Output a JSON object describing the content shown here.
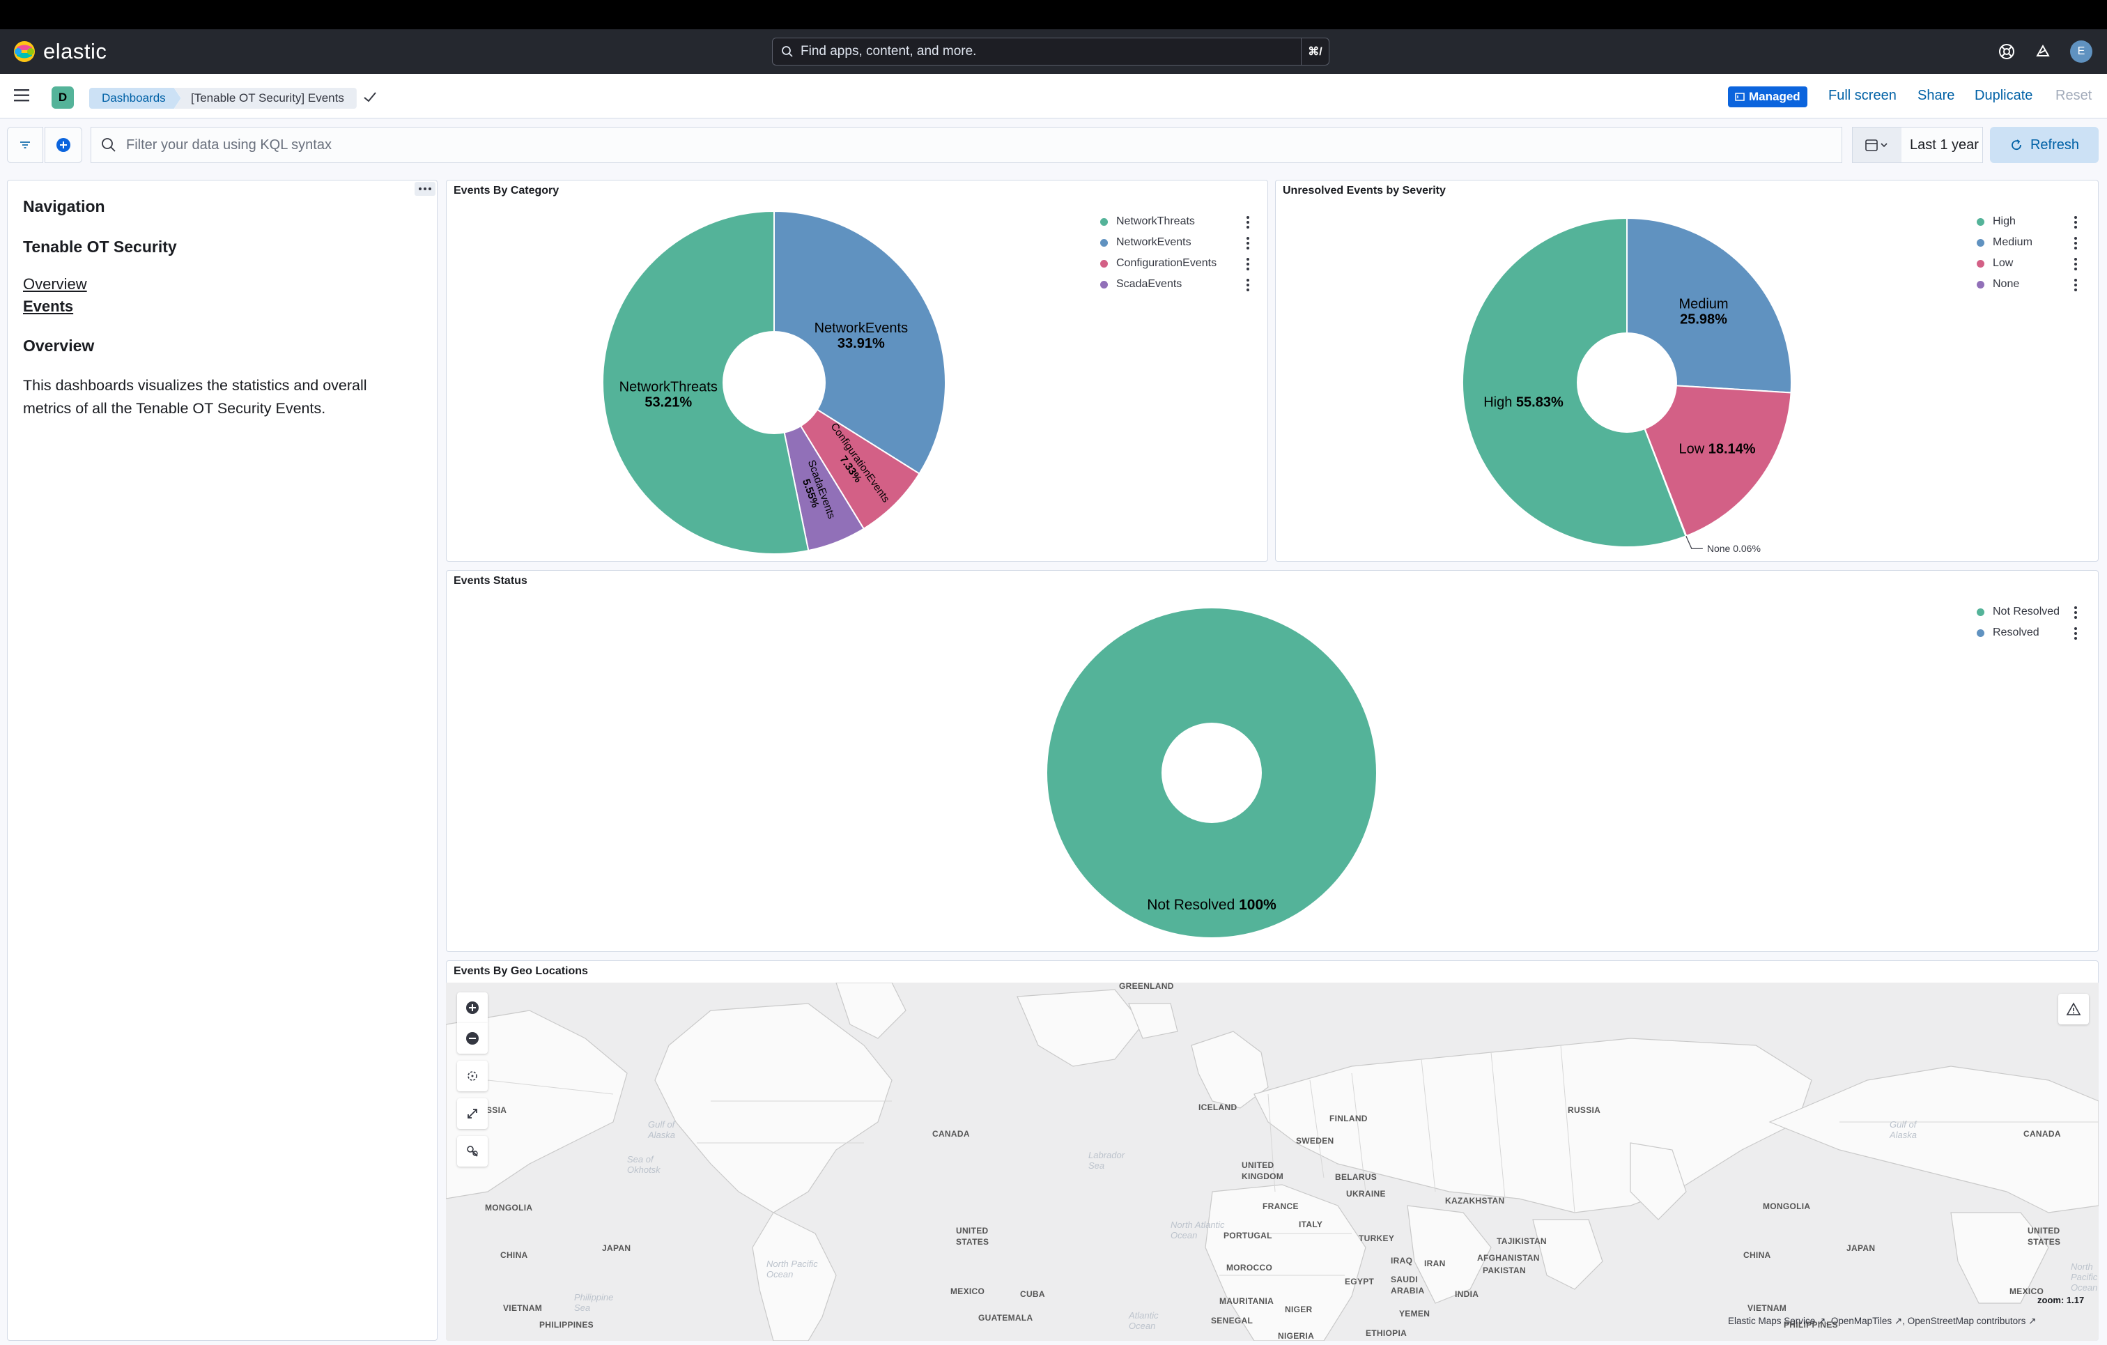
{
  "app": {
    "brand": "elastic",
    "accent": "#0b64dd"
  },
  "global_search": {
    "placeholder": "Find apps, content, and more.",
    "shortcut": "⌘/"
  },
  "header_icons": [
    "help-icon",
    "newsfeed-icon"
  ],
  "user": {
    "initial": "E"
  },
  "space": {
    "initial": "D"
  },
  "breadcrumbs": [
    "Dashboards",
    "[Tenable OT Security] Events"
  ],
  "toolbar": {
    "managed_label": "Managed",
    "fullscreen_label": "Full screen",
    "share_label": "Share",
    "duplicate_label": "Duplicate",
    "reset_label": "Reset"
  },
  "query_bar": {
    "placeholder": "Filter your data using KQL syntax",
    "time_range": "Last 1 year",
    "refresh_label": "Refresh"
  },
  "nav_panel": {
    "heading": "Navigation",
    "subheading": "Tenable OT Security",
    "links": [
      "Overview",
      "Events"
    ],
    "section_title": "Overview",
    "description": "This dashboards visualizes the statistics and overall metrics of all the Tenable OT Security Events."
  },
  "panels": {
    "category_title": "Events By Category",
    "severity_title": "Unresolved Events by Severity",
    "status_title": "Events Status",
    "geo_title": "Events By Geo Locations"
  },
  "chart_data": [
    {
      "type": "pie",
      "title": "Events By Category",
      "slices": [
        {
          "label": "NetworkEvents",
          "value": 33.91,
          "color": "#6092c0"
        },
        {
          "label": "ConfigurationEvents",
          "value": 7.33,
          "color": "#d36086"
        },
        {
          "label": "ScadaEvents",
          "value": 5.55,
          "color": "#9170b8"
        },
        {
          "label": "NetworkThreats",
          "value": 53.21,
          "color": "#54b399"
        }
      ],
      "value_labels": [
        "33.91%",
        "7.33%",
        "5.55%",
        "53.21%"
      ],
      "legend": [
        "NetworkThreats",
        "NetworkEvents",
        "ConfigurationEvents",
        "ScadaEvents"
      ],
      "legend_position": "top-right",
      "donut": true
    },
    {
      "type": "pie",
      "title": "Unresolved Events by Severity",
      "slices": [
        {
          "label": "Medium",
          "value": 25.98,
          "color": "#6092c0"
        },
        {
          "label": "Low",
          "value": 18.14,
          "color": "#d36086"
        },
        {
          "label": "None",
          "value": 0.06,
          "color": "#9170b8"
        },
        {
          "label": "High",
          "value": 55.83,
          "color": "#54b399"
        }
      ],
      "value_labels": [
        "25.98%",
        "18.14%",
        "0.06%",
        "55.83%"
      ],
      "legend": [
        "High",
        "Medium",
        "Low",
        "None"
      ],
      "legend_position": "top-right",
      "donut": true
    },
    {
      "type": "pie",
      "title": "Events Status",
      "slices": [
        {
          "label": "Not Resolved",
          "value": 100,
          "color": "#54b399"
        }
      ],
      "value_labels": [
        "100%"
      ],
      "legend": [
        "Not Resolved",
        "Resolved"
      ],
      "legend_colors": [
        "#54b399",
        "#6092c0"
      ],
      "legend_position": "top-right",
      "donut": true
    }
  ],
  "map": {
    "zoom_readout": "zoom: 1.17",
    "attribution": [
      "Elastic Maps Service",
      "OpenMapTiles",
      "OpenStreetMap contributors"
    ],
    "labels": [
      "GREENLAND",
      "ICELAND",
      "FINLAND",
      "RUSSIA",
      "SWEDEN",
      "CANADA",
      "UNITED KINGDOM",
      "BELARUS",
      "UKRAINE",
      "KAZAKHSTAN",
      "MONGOLIA",
      "FRANCE",
      "ITALY",
      "PORTUGAL",
      "TURKEY",
      "TAJIKISTAN",
      "CHINA",
      "JAPAN",
      "UNITED STATES",
      "IRAQ",
      "IRAN",
      "AFGHANISTAN",
      "PAKISTAN",
      "MOROCCO",
      "EGYPT",
      "SAUDI ARABIA",
      "INDIA",
      "MEXICO",
      "CUBA",
      "MAURITANIA",
      "NIGER",
      "YEMEN",
      "GUATEMALA",
      "SENEGAL",
      "ETHIOPIA",
      "NIGERIA",
      "VIETNAM",
      "PHILIPPINES",
      "SSIA"
    ],
    "oceans": [
      "North Atlantic Ocean",
      "North Pacific Ocean",
      "Atlantic Ocean",
      "Philippine Sea",
      "Labrador Sea",
      "Gulf of Alaska",
      "Sea of Okhotsk"
    ]
  }
}
